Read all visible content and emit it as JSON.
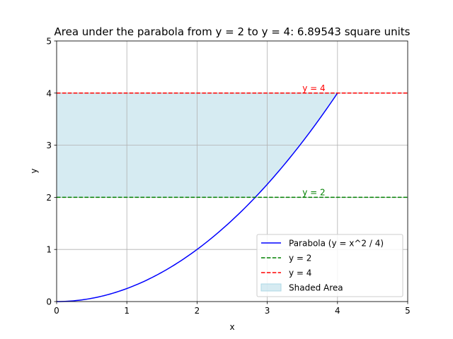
{
  "chart_data": {
    "type": "line",
    "title": "Area under the parabola from y = 2 to y = 4: 6.89543 square units",
    "xlabel": "x",
    "ylabel": "y",
    "xlim": [
      0,
      5
    ],
    "ylim": [
      0,
      5
    ],
    "xticks": [
      "0",
      "1",
      "2",
      "3",
      "4",
      "5"
    ],
    "yticks": [
      "0",
      "1",
      "2",
      "3",
      "4",
      "5"
    ],
    "grid": true,
    "legend_position": "bottom-right",
    "series": [
      {
        "name": "Parabola (y = x^2 / 4)",
        "kind": "curve",
        "x_range": [
          0,
          4
        ],
        "color": "#0000ff",
        "style": "solid"
      },
      {
        "name": "y = 2",
        "kind": "hline",
        "y": 2,
        "color": "#008000",
        "style": "dashed"
      },
      {
        "name": "y = 4",
        "kind": "hline",
        "y": 4,
        "color": "#ff0000",
        "style": "dashed"
      },
      {
        "name": "Shaded Area",
        "kind": "area",
        "y_range": [
          2,
          4
        ],
        "color": "#add8e6"
      }
    ],
    "annotations": [
      {
        "text": "y = 2",
        "x": 3.5,
        "y": 2,
        "color": "#008000"
      },
      {
        "text": "y = 4",
        "x": 3.5,
        "y": 4,
        "color": "#ff0000"
      }
    ]
  }
}
